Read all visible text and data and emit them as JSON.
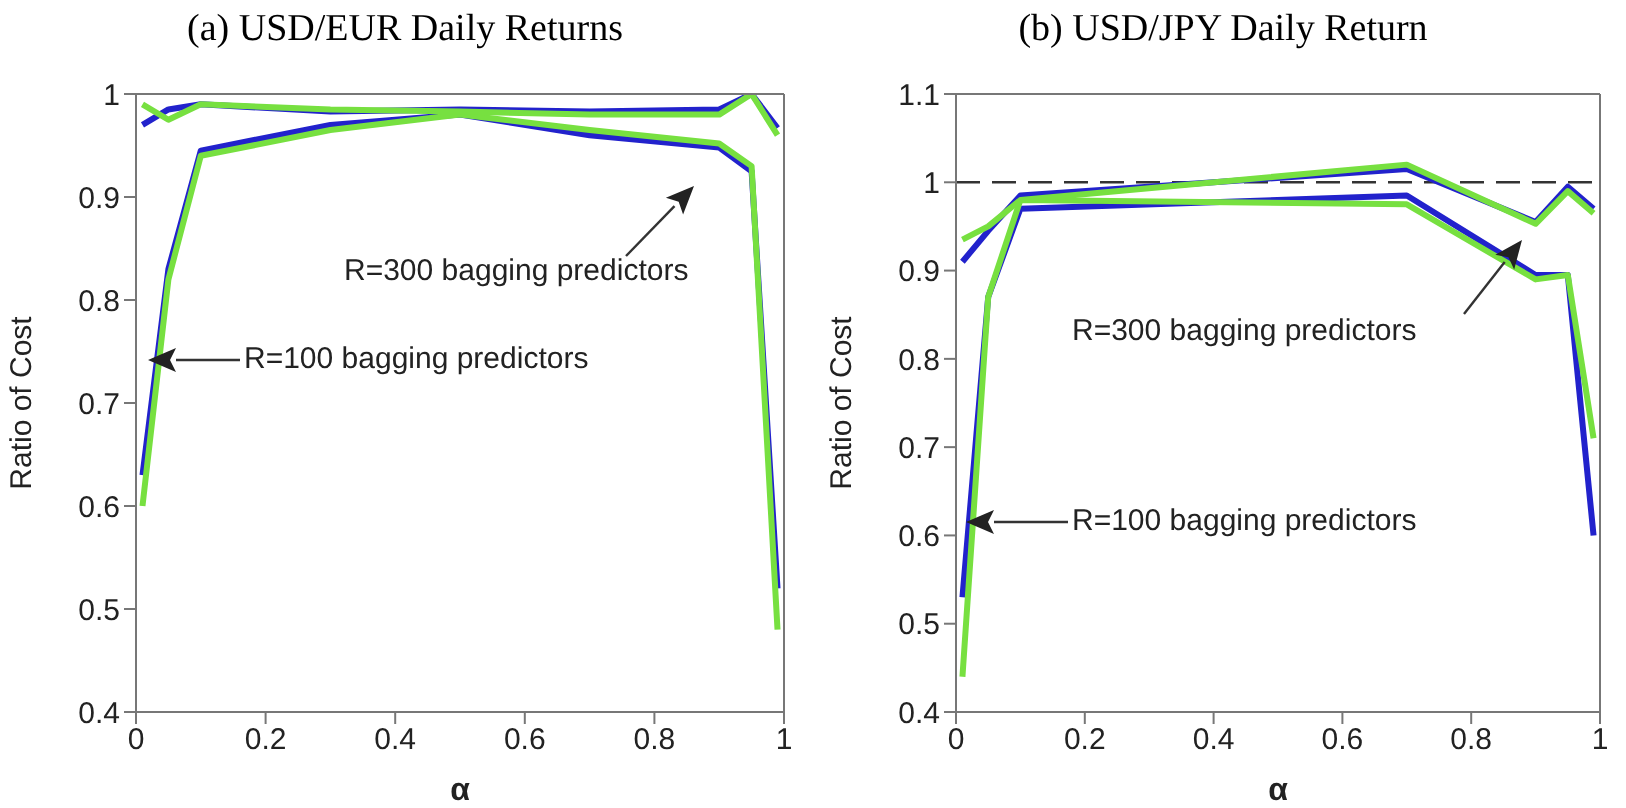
{
  "chart_data": [
    {
      "type": "line",
      "title": "(a) USD/EUR Daily Returns",
      "xlabel": "α",
      "ylabel": "Ratio of Cost",
      "x": [
        0.01,
        0.05,
        0.1,
        0.3,
        0.5,
        0.7,
        0.9,
        0.95,
        0.99
      ],
      "series": [
        {
          "color": "#2222cc",
          "values": [
            0.63,
            0.83,
            0.945,
            0.97,
            0.98,
            0.96,
            0.948,
            0.925,
            0.52
          ]
        },
        {
          "color": "#77e040",
          "values": [
            0.6,
            0.82,
            0.94,
            0.965,
            0.98,
            0.965,
            0.952,
            0.93,
            0.48
          ]
        },
        {
          "color": "#2222cc",
          "values": [
            0.97,
            0.985,
            0.99,
            0.983,
            0.985,
            0.983,
            0.985,
            1.0,
            0.967
          ]
        },
        {
          "color": "#77e040",
          "values": [
            0.99,
            0.975,
            0.99,
            0.985,
            0.983,
            0.98,
            0.98,
            1.0,
            0.96
          ]
        }
      ],
      "xlim": [
        0,
        1
      ],
      "xticks": [
        0,
        0.2,
        0.4,
        0.6,
        0.8,
        1
      ],
      "ylim": [
        0.4,
        1
      ],
      "yticks": [
        0.4,
        0.5,
        0.6,
        0.7,
        0.8,
        0.9,
        1
      ],
      "line_style": "solid",
      "annotations": [
        "R=300 bagging predictors",
        "R=100 bagging predictors"
      ]
    },
    {
      "type": "line",
      "title": "(b) USD/JPY Daily Return",
      "xlabel": "α",
      "ylabel": "Ratio of Cost",
      "x": [
        0.01,
        0.05,
        0.1,
        0.7,
        0.9,
        0.95,
        0.99
      ],
      "series": [
        {
          "color": "#2222cc",
          "values": [
            0.53,
            0.87,
            0.97,
            0.985,
            0.895,
            0.895,
            0.6
          ]
        },
        {
          "color": "#77e040",
          "values": [
            0.44,
            0.87,
            0.98,
            0.975,
            0.89,
            0.895,
            0.71
          ]
        },
        {
          "color": "#2222cc",
          "values": [
            0.91,
            0.945,
            0.985,
            1.015,
            0.955,
            0.995,
            0.97
          ]
        },
        {
          "color": "#77e040",
          "values": [
            0.935,
            0.95,
            0.98,
            1.02,
            0.953,
            0.99,
            0.965
          ]
        }
      ],
      "xlim": [
        0,
        1
      ],
      "xticks": [
        0,
        0.2,
        0.4,
        0.6,
        0.8,
        1
      ],
      "ylim": [
        0.4,
        1.1
      ],
      "yticks": [
        0.4,
        0.5,
        0.6,
        0.7,
        0.8,
        0.9,
        1,
        1.1
      ],
      "line_style": "solid",
      "ref_lines": [
        {
          "axis": "y",
          "value": 1,
          "color": "#333333",
          "line_style": "dashed"
        }
      ],
      "annotations": [
        "R=300 bagging predictors",
        "R=100 bagging predictors"
      ]
    }
  ]
}
